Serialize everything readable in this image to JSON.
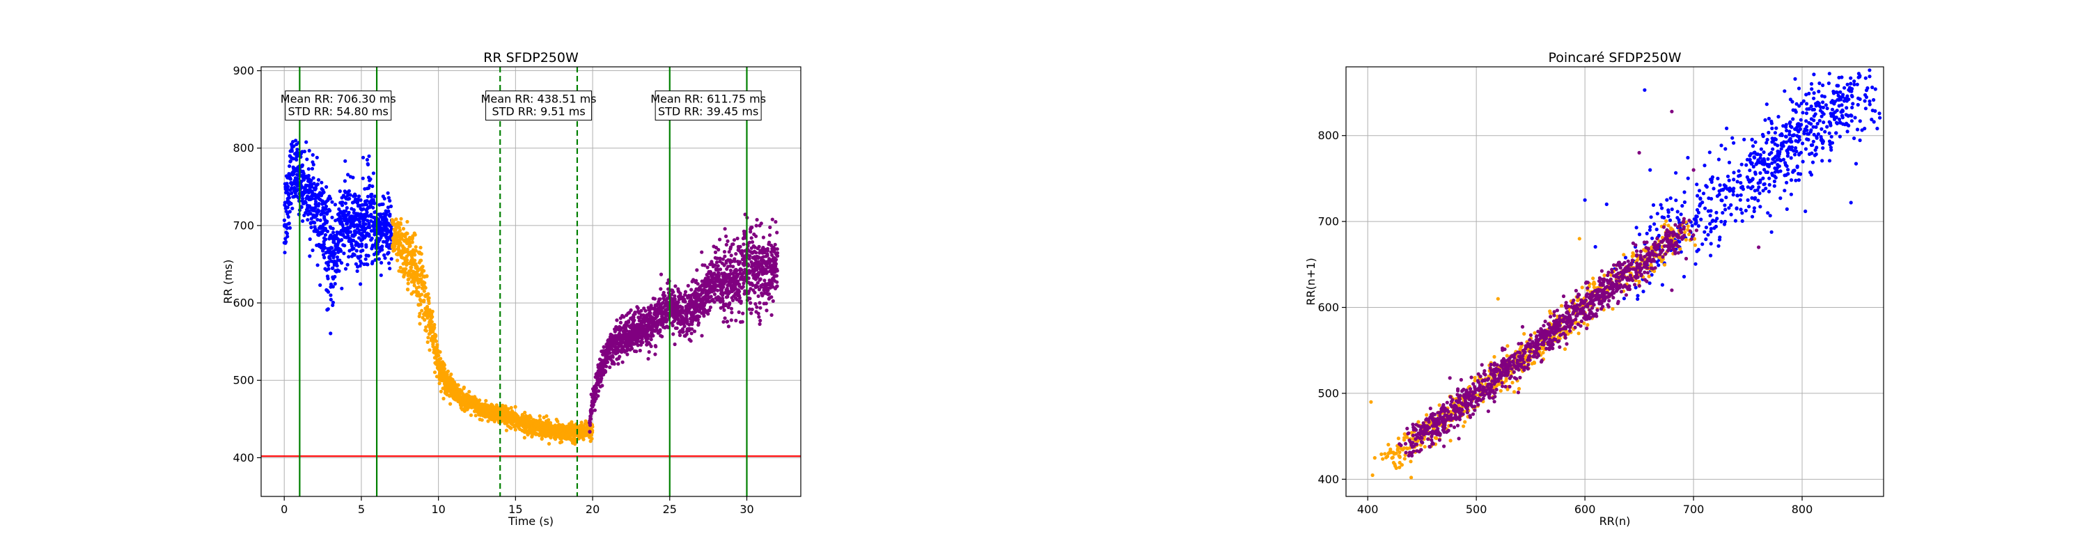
{
  "chart_data": [
    {
      "type": "scatter",
      "title": "RR SFDP250W",
      "xlabel": "Time (s)",
      "ylabel": "RR (ms)",
      "xlim": [
        -1.5,
        33.5
      ],
      "ylim": [
        350,
        905
      ],
      "xticks": [
        0,
        5,
        10,
        15,
        20,
        25,
        30
      ],
      "yticks": [
        400,
        500,
        600,
        700,
        800,
        900
      ],
      "grid": true,
      "series": [
        {
          "color": "#0000ff",
          "x_range": [
            0,
            7
          ],
          "segments": [
            {
              "t": [
                0,
                0.5,
                1,
                1.5,
                2,
                2.5,
                3,
                3.5,
                4,
                4.5,
                5,
                5.5,
                6,
                6.5,
                7
              ],
              "rr": [
                710,
                770,
                760,
                745,
                720,
                700,
                650,
                680,
                710,
                700,
                690,
                720,
                690,
                700,
                690
              ],
              "spread": [
                45,
                30,
                30,
                30,
                35,
                45,
                50,
                40,
                35,
                35,
                40,
                45,
                30,
                30,
                25
              ]
            }
          ]
        },
        {
          "color": "#ffa500",
          "x_range": [
            7,
            20
          ],
          "segments": [
            {
              "t": [
                7,
                7.5,
                8,
                8.5,
                9,
                9.3,
                9.6,
                10,
                10.5,
                11,
                12,
                13,
                14,
                15,
                16,
                17,
                18,
                19,
                19.8
              ],
              "rr": [
                690,
                670,
                660,
                640,
                620,
                590,
                560,
                520,
                500,
                485,
                470,
                460,
                455,
                448,
                442,
                438,
                432,
                433,
                435
              ],
              "spread": [
                20,
                25,
                30,
                30,
                30,
                25,
                20,
                15,
                12,
                10,
                8,
                8,
                8,
                8,
                8,
                8,
                8,
                7,
                7
              ]
            }
          ]
        },
        {
          "color": "#800080",
          "x_range": [
            19.8,
            32
          ],
          "segments": [
            {
              "t": [
                19.8,
                20,
                20.3,
                20.7,
                21,
                22,
                23,
                24,
                25,
                26,
                27,
                28,
                29,
                30,
                31,
                32
              ],
              "rr": [
                440,
                470,
                500,
                520,
                540,
                555,
                565,
                575,
                595,
                585,
                605,
                630,
                625,
                645,
                640,
                650
              ],
              "spread": [
                8,
                12,
                15,
                15,
                15,
                18,
                20,
                20,
                20,
                22,
                25,
                30,
                35,
                40,
                35,
                30
              ]
            }
          ]
        }
      ],
      "lines": [
        {
          "orientation": "vertical",
          "x": 1,
          "color": "#008000",
          "style": "solid"
        },
        {
          "orientation": "vertical",
          "x": 6,
          "color": "#008000",
          "style": "solid"
        },
        {
          "orientation": "vertical",
          "x": 14,
          "color": "#008000",
          "style": "dashed"
        },
        {
          "orientation": "vertical",
          "x": 19,
          "color": "#008000",
          "style": "dashed"
        },
        {
          "orientation": "vertical",
          "x": 25,
          "color": "#008000",
          "style": "solid"
        },
        {
          "orientation": "vertical",
          "x": 30,
          "color": "#008000",
          "style": "solid"
        },
        {
          "orientation": "horizontal",
          "y": 402,
          "color": "#ff0000",
          "style": "solid"
        }
      ],
      "annotations": [
        {
          "x": 3.5,
          "y": 855,
          "lines": [
            "Mean RR: 706.30 ms",
            "STD RR: 54.80 ms"
          ]
        },
        {
          "x": 16.5,
          "y": 855,
          "lines": [
            "Mean RR: 438.51 ms",
            "STD RR: 9.51 ms"
          ]
        },
        {
          "x": 27.5,
          "y": 855,
          "lines": [
            "Mean RR: 611.75 ms",
            "STD RR: 39.45 ms"
          ]
        }
      ]
    },
    {
      "type": "scatter",
      "title": "Poincaré SFDP250W",
      "xlabel": "RR(n)",
      "ylabel": "RR(n+1)",
      "xlim": [
        380,
        875
      ],
      "ylim": [
        380,
        880
      ],
      "xticks": [
        400,
        500,
        600,
        700,
        800
      ],
      "yticks": [
        400,
        500,
        600,
        700,
        800
      ],
      "grid": true,
      "series": [
        {
          "color": "#0000ff",
          "center_range": [
            620,
            850
          ],
          "spread": 35
        },
        {
          "color": "#ffa500",
          "center_range": [
            420,
            690
          ],
          "spread": 14
        },
        {
          "color": "#800080",
          "center_range": [
            440,
            690
          ],
          "spread": 14
        }
      ],
      "outliers": [
        {
          "color": "#0000ff",
          "points": [
            [
              655,
              853
            ],
            [
              620,
              720
            ],
            [
              845,
              722
            ],
            [
              660,
              760
            ],
            [
              600,
              725
            ]
          ]
        },
        {
          "color": "#ffa500",
          "points": [
            [
              403,
              490
            ],
            [
              440,
              402
            ],
            [
              595,
              680
            ],
            [
              520,
              610
            ]
          ]
        },
        {
          "color": "#800080",
          "points": [
            [
              680,
              828
            ],
            [
              650,
              780
            ],
            [
              700,
              760
            ],
            [
              760,
              670
            ],
            [
              680,
              620
            ]
          ]
        }
      ]
    }
  ]
}
